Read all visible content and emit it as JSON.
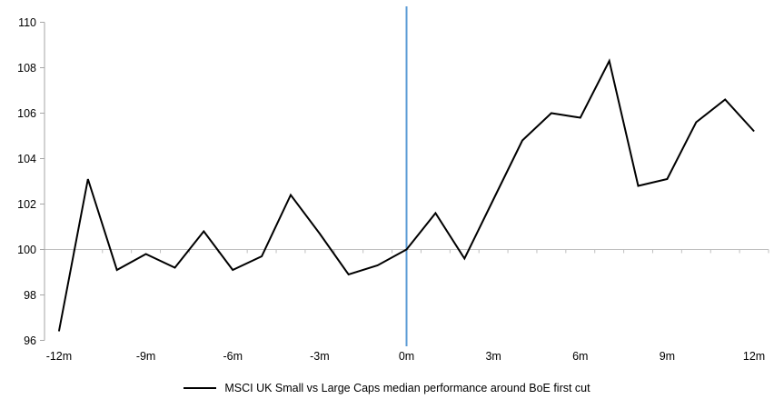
{
  "chart": {
    "legend_label": "MSCI UK Small vs Large Caps median performance around BoE first cut"
  },
  "chart_data": {
    "type": "line",
    "title": "",
    "x": [
      -12,
      -11,
      -10,
      -9,
      -8,
      -7,
      -6,
      -5,
      -4,
      -3,
      -2,
      -1,
      0,
      1,
      2,
      3,
      4,
      5,
      6,
      7,
      8,
      9,
      10,
      11,
      12
    ],
    "series": [
      {
        "name": "MSCI UK Small vs Large Caps median performance around BoE first cut",
        "values": [
          96.4,
          103.1,
          99.1,
          99.8,
          99.2,
          100.8,
          99.1,
          99.7,
          102.4,
          100.7,
          98.9,
          99.3,
          100.0,
          101.6,
          99.6,
          102.2,
          104.8,
          106.0,
          105.8,
          108.3,
          102.8,
          103.1,
          105.6,
          106.6,
          105.2
        ]
      }
    ],
    "xlabel": "",
    "ylabel": "",
    "xlim": [
      -12.5,
      12.5
    ],
    "ylim": [
      96,
      110
    ],
    "y_ticks": [
      96,
      98,
      100,
      102,
      104,
      106,
      108,
      110
    ],
    "x_tick_months": [
      -12,
      -9,
      -6,
      -3,
      0,
      3,
      6,
      9,
      12
    ],
    "x_tick_labels": [
      "-12m",
      "-9m",
      "-6m",
      "-3m",
      "0m",
      "3m",
      "6m",
      "9m",
      "12m"
    ],
    "baseline_value": 100,
    "event_line_x": 0,
    "grid": false,
    "legend_position": "bottom",
    "colors": {
      "series": "#000000",
      "event_line": "#5B9BD5",
      "y_axis": "#A6A6A6",
      "baseline": "#BFBFBF",
      "tick": "#BFBFBF",
      "label_text": "#000000"
    }
  }
}
